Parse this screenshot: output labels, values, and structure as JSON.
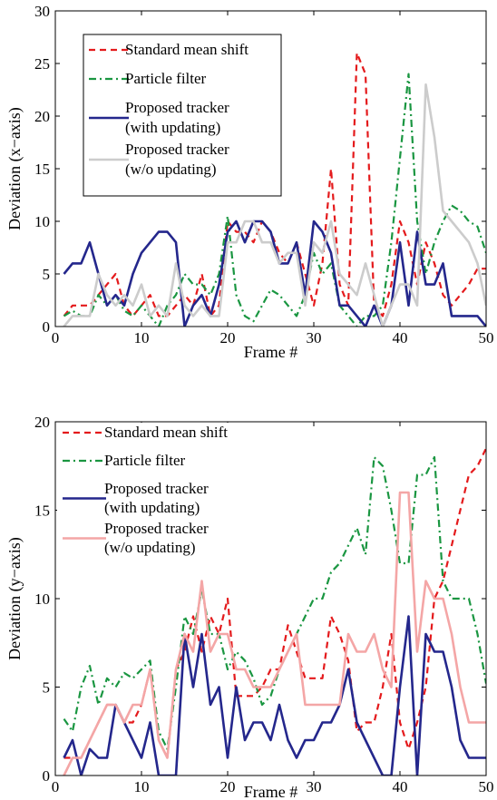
{
  "chart_data": [
    {
      "type": "line",
      "xlabel": "Frame #",
      "ylabel": "Deviation (x−axis)",
      "xlim": [
        0,
        50
      ],
      "ylim": [
        0,
        30
      ],
      "xticks": [
        0,
        10,
        20,
        30,
        40,
        50
      ],
      "yticks": [
        0,
        5,
        10,
        15,
        20,
        25,
        30
      ],
      "grid": false,
      "legend_position": "top-left",
      "series": [
        {
          "name": "Standard mean shift",
          "color": "#e41a1c",
          "style": "dashed",
          "legend_lines": [
            "Standard mean shift"
          ],
          "x": [
            1,
            2,
            3,
            4,
            5,
            6,
            7,
            8,
            9,
            10,
            11,
            12,
            13,
            14,
            15,
            16,
            17,
            18,
            19,
            20,
            21,
            22,
            23,
            24,
            25,
            26,
            27,
            28,
            29,
            30,
            31,
            32,
            33,
            34,
            35,
            36,
            37,
            38,
            39,
            40,
            41,
            42,
            43,
            44,
            45,
            46,
            47,
            48,
            49,
            50
          ],
          "y": [
            1,
            2,
            2,
            2,
            3,
            4,
            5,
            2,
            1,
            2,
            3,
            1,
            1,
            2,
            3,
            2,
            5,
            1,
            2,
            10,
            9,
            9,
            8,
            10,
            9,
            7,
            6,
            8,
            5,
            2,
            6,
            15,
            4,
            2,
            26,
            24,
            2,
            1,
            4,
            10,
            8,
            4,
            8,
            6,
            3,
            2,
            3,
            4,
            5.5,
            5.5
          ]
        },
        {
          "name": "Particle filter",
          "color": "#1a9641",
          "style": "dashdot",
          "legend_lines": [
            "Particle filter"
          ],
          "x": [
            1,
            2,
            3,
            4,
            5,
            6,
            7,
            8,
            9,
            10,
            11,
            12,
            13,
            14,
            15,
            16,
            17,
            18,
            19,
            20,
            21,
            22,
            23,
            24,
            25,
            26,
            27,
            28,
            29,
            30,
            31,
            32,
            33,
            34,
            35,
            36,
            37,
            38,
            39,
            40,
            41,
            42,
            43,
            44,
            45,
            46,
            47,
            48,
            49,
            50
          ],
          "y": [
            1,
            1.5,
            1,
            1,
            3,
            2,
            3,
            1.5,
            1,
            2,
            1,
            0,
            2,
            3,
            5,
            4,
            4,
            3,
            5,
            10.5,
            3,
            1,
            0.5,
            2,
            3.5,
            3,
            2,
            1,
            3,
            7,
            5,
            6,
            2,
            1,
            0,
            1,
            1,
            2,
            8,
            16,
            24,
            10,
            5,
            8,
            10,
            11.5,
            11,
            10,
            9.5,
            7
          ]
        },
        {
          "name": "Proposed tracker (with updating)",
          "color": "#24278c",
          "style": "solid",
          "legend_lines": [
            "Proposed tracker",
            "(with updating)"
          ],
          "x": [
            1,
            2,
            3,
            4,
            5,
            6,
            7,
            8,
            9,
            10,
            11,
            12,
            13,
            14,
            15,
            16,
            17,
            18,
            19,
            20,
            21,
            22,
            23,
            24,
            25,
            26,
            27,
            28,
            29,
            30,
            31,
            32,
            33,
            34,
            35,
            36,
            37,
            38,
            39,
            40,
            41,
            42,
            43,
            44,
            45,
            46,
            47,
            48,
            49,
            50
          ],
          "y": [
            5,
            6,
            6,
            8,
            5,
            2,
            3,
            2,
            5,
            7,
            8,
            9,
            9,
            8,
            0,
            2,
            3,
            1,
            4,
            9,
            10,
            8,
            10,
            10,
            9,
            6,
            6,
            8,
            3,
            10,
            9,
            7,
            2,
            2,
            1,
            0,
            2,
            0,
            2,
            8,
            2,
            9,
            4,
            4,
            6,
            1,
            1,
            1,
            1,
            0
          ]
        },
        {
          "name": "Proposed tracker (w/o updating)",
          "color": "#cccccc",
          "style": "solid",
          "legend_lines": [
            "Proposed tracker",
            " (w/o updating)"
          ],
          "x": [
            1,
            2,
            3,
            4,
            5,
            6,
            7,
            8,
            9,
            10,
            11,
            12,
            13,
            14,
            15,
            16,
            17,
            18,
            19,
            20,
            21,
            22,
            23,
            24,
            25,
            26,
            27,
            28,
            29,
            30,
            31,
            32,
            33,
            34,
            35,
            36,
            37,
            38,
            39,
            40,
            41,
            42,
            43,
            44,
            45,
            46,
            47,
            48,
            49,
            50
          ],
          "y": [
            0,
            1,
            1,
            1,
            5,
            3,
            2,
            3,
            2,
            4,
            1,
            2,
            1,
            6,
            2,
            1,
            2,
            1,
            1,
            8,
            8,
            10,
            10,
            8,
            8,
            6,
            7,
            7,
            2,
            8,
            7,
            10,
            5,
            4,
            3,
            6,
            3,
            0,
            2,
            4,
            4,
            2,
            23,
            18,
            11,
            10,
            9,
            8,
            6,
            2
          ]
        }
      ]
    },
    {
      "type": "line",
      "xlabel": "Frame #",
      "ylabel": "Deviation (y−axis)",
      "xlim": [
        0,
        50
      ],
      "ylim": [
        0,
        20
      ],
      "xticks": [
        0,
        10,
        20,
        30,
        40,
        50
      ],
      "yticks": [
        0,
        5,
        10,
        15,
        20
      ],
      "grid": false,
      "legend_position": "top-left",
      "series": [
        {
          "name": "Standard mean shift",
          "color": "#e41a1c",
          "style": "dashed",
          "legend_lines": [
            "Standard mean shift"
          ],
          "x": [
            1,
            2,
            3,
            4,
            5,
            6,
            7,
            8,
            9,
            10,
            11,
            12,
            13,
            14,
            15,
            16,
            17,
            18,
            19,
            20,
            21,
            22,
            23,
            24,
            25,
            26,
            27,
            28,
            29,
            30,
            31,
            32,
            33,
            34,
            35,
            36,
            37,
            38,
            39,
            40,
            41,
            42,
            43,
            44,
            45,
            46,
            47,
            48,
            49,
            50
          ],
          "y": [
            1,
            1,
            1,
            2,
            3,
            4,
            4,
            3,
            3,
            4,
            6,
            2,
            1,
            6,
            7,
            9,
            7,
            9,
            8,
            10,
            4.5,
            4.5,
            4.5,
            5,
            6,
            6,
            8.5,
            7,
            5.5,
            5.5,
            5.5,
            9,
            8,
            6.5,
            2.5,
            3,
            3,
            5,
            8,
            3,
            1.5,
            3,
            5,
            10,
            11,
            13,
            15,
            17,
            17.5,
            18.5
          ]
        },
        {
          "name": "Particle filter",
          "color": "#1a9641",
          "style": "dashdot",
          "legend_lines": [
            "Particle filter"
          ],
          "x": [
            1,
            2,
            3,
            4,
            5,
            6,
            7,
            8,
            9,
            10,
            11,
            12,
            13,
            14,
            15,
            16,
            17,
            18,
            19,
            20,
            21,
            22,
            23,
            24,
            25,
            26,
            27,
            28,
            29,
            30,
            31,
            32,
            33,
            34,
            35,
            36,
            37,
            38,
            39,
            40,
            41,
            42,
            43,
            44,
            45,
            46,
            47,
            48,
            49,
            50
          ],
          "y": [
            3.2,
            2.5,
            5,
            6.2,
            4,
            5.5,
            5,
            5.8,
            5.5,
            6,
            6.5,
            2.5,
            1.5,
            5,
            9,
            8,
            10.5,
            8,
            8,
            6,
            7,
            6.5,
            5.5,
            4,
            4.5,
            6,
            7,
            8,
            9,
            10,
            10,
            11.5,
            12,
            13,
            14,
            12.5,
            18,
            17.5,
            15,
            12,
            12,
            17,
            17,
            18,
            11,
            10,
            10,
            10,
            8,
            5.2
          ]
        },
        {
          "name": "Proposed tracker (with updating)",
          "color": "#24278c",
          "style": "solid",
          "legend_lines": [
            "Proposed tracker",
            "(with updating)"
          ],
          "x": [
            1,
            2,
            3,
            4,
            5,
            6,
            7,
            8,
            9,
            10,
            11,
            12,
            13,
            14,
            15,
            16,
            17,
            18,
            19,
            20,
            21,
            22,
            23,
            24,
            25,
            26,
            27,
            28,
            29,
            30,
            31,
            32,
            33,
            34,
            35,
            36,
            37,
            38,
            39,
            40,
            41,
            42,
            43,
            44,
            45,
            46,
            47,
            48,
            49,
            50
          ],
          "y": [
            1,
            2,
            0,
            1.5,
            1,
            1,
            4,
            3,
            2,
            1,
            3,
            0,
            0,
            0,
            8,
            5,
            8,
            4,
            5,
            1,
            5,
            2,
            3,
            3,
            2,
            4,
            2,
            1,
            2,
            2,
            3,
            3,
            4,
            6,
            3,
            2,
            1,
            0,
            0,
            5,
            9,
            0,
            8,
            7,
            7,
            5,
            2,
            1,
            1,
            1
          ]
        },
        {
          "name": "Proposed tracker (w/o updating)",
          "color": "#f4a6a6",
          "style": "solid",
          "legend_lines": [
            "Proposed tracker",
            "(w/o updating)"
          ],
          "x": [
            1,
            2,
            3,
            4,
            5,
            6,
            7,
            8,
            9,
            10,
            11,
            12,
            13,
            14,
            15,
            16,
            17,
            18,
            19,
            20,
            21,
            22,
            23,
            24,
            25,
            26,
            27,
            28,
            29,
            30,
            31,
            32,
            33,
            34,
            35,
            36,
            37,
            38,
            39,
            40,
            41,
            42,
            43,
            44,
            45,
            46,
            47,
            48,
            49,
            50
          ],
          "y": [
            0,
            1,
            1,
            2,
            3,
            4,
            4,
            3,
            4,
            4,
            6,
            2,
            1,
            6,
            8,
            7,
            11,
            7,
            8,
            8,
            6,
            6,
            5,
            5,
            5,
            6,
            7,
            8,
            4,
            4,
            4,
            4,
            4,
            8,
            7,
            7,
            8,
            6,
            5,
            16,
            16,
            7,
            11,
            10,
            10,
            8,
            5,
            3,
            3,
            3
          ]
        }
      ]
    }
  ]
}
